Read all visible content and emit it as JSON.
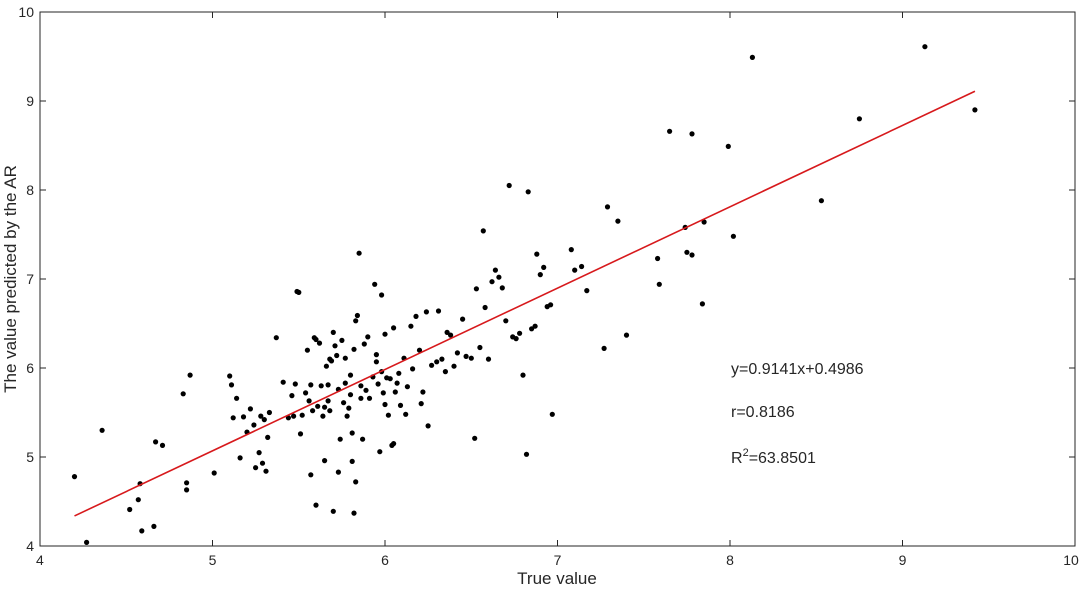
{
  "chart_data": {
    "type": "scatter",
    "title": "",
    "xlabel": "True value",
    "ylabel": "The value predicted by the AR",
    "xlim": [
      4,
      10
    ],
    "ylim": [
      4,
      10
    ],
    "xticks": [
      "4",
      "5",
      "6",
      "7",
      "8",
      "9",
      "10"
    ],
    "yticks": [
      "4",
      "5",
      "6",
      "7",
      "8",
      "9",
      "10"
    ],
    "grid": false,
    "legend": "none",
    "colors": {
      "points": "#000000",
      "fit_line": "#d7191c",
      "axes": "#262626"
    },
    "fit_line": {
      "slope": 0.9141,
      "intercept": 0.4986,
      "x_range": [
        4.2,
        9.42
      ]
    },
    "annotations": {
      "equation": "y=0.9141x+0.4986",
      "r": "r=0.8186",
      "r2_prefix": "R",
      "r2_sup": "2",
      "r2_value": "=63.8501"
    },
    "points": [
      [
        4.2,
        4.78
      ],
      [
        4.27,
        4.04
      ],
      [
        4.36,
        5.3
      ],
      [
        4.52,
        4.41
      ],
      [
        4.57,
        4.52
      ],
      [
        4.58,
        4.7
      ],
      [
        4.59,
        4.17
      ],
      [
        4.66,
        4.22
      ],
      [
        4.67,
        5.17
      ],
      [
        4.71,
        5.13
      ],
      [
        4.83,
        5.71
      ],
      [
        4.85,
        4.71
      ],
      [
        4.85,
        4.63
      ],
      [
        4.87,
        5.92
      ],
      [
        5.01,
        4.82
      ],
      [
        5.1,
        5.91
      ],
      [
        5.11,
        5.81
      ],
      [
        5.12,
        5.44
      ],
      [
        5.14,
        5.66
      ],
      [
        5.16,
        4.99
      ],
      [
        5.18,
        5.45
      ],
      [
        5.2,
        5.28
      ],
      [
        5.22,
        5.54
      ],
      [
        5.24,
        5.36
      ],
      [
        5.25,
        4.88
      ],
      [
        5.27,
        5.05
      ],
      [
        5.28,
        5.46
      ],
      [
        5.29,
        4.93
      ],
      [
        5.3,
        5.42
      ],
      [
        5.31,
        4.84
      ],
      [
        5.32,
        5.22
      ],
      [
        5.33,
        5.5
      ],
      [
        5.37,
        6.34
      ],
      [
        5.41,
        5.84
      ],
      [
        5.44,
        5.44
      ],
      [
        5.46,
        5.69
      ],
      [
        5.47,
        5.46
      ],
      [
        5.48,
        5.82
      ],
      [
        5.49,
        6.86
      ],
      [
        5.5,
        6.85
      ],
      [
        5.51,
        5.26
      ],
      [
        5.52,
        5.47
      ],
      [
        5.54,
        5.72
      ],
      [
        5.55,
        6.2
      ],
      [
        5.56,
        5.63
      ],
      [
        5.57,
        5.81
      ],
      [
        5.57,
        4.8
      ],
      [
        5.58,
        5.52
      ],
      [
        5.59,
        6.34
      ],
      [
        5.6,
        4.46
      ],
      [
        5.6,
        6.32
      ],
      [
        5.61,
        5.57
      ],
      [
        5.62,
        6.28
      ],
      [
        5.63,
        5.8
      ],
      [
        5.64,
        5.46
      ],
      [
        5.65,
        4.96
      ],
      [
        5.65,
        5.56
      ],
      [
        5.66,
        6.02
      ],
      [
        5.67,
        5.81
      ],
      [
        5.67,
        5.63
      ],
      [
        5.68,
        5.52
      ],
      [
        5.68,
        6.1
      ],
      [
        5.69,
        6.08
      ],
      [
        5.7,
        4.39
      ],
      [
        5.7,
        6.4
      ],
      [
        5.71,
        6.25
      ],
      [
        5.72,
        6.14
      ],
      [
        5.73,
        4.83
      ],
      [
        5.73,
        5.76
      ],
      [
        5.74,
        5.2
      ],
      [
        5.75,
        6.31
      ],
      [
        5.76,
        5.61
      ],
      [
        5.77,
        5.83
      ],
      [
        5.77,
        6.11
      ],
      [
        5.78,
        5.46
      ],
      [
        5.79,
        5.55
      ],
      [
        5.8,
        5.92
      ],
      [
        5.8,
        5.7
      ],
      [
        5.81,
        4.95
      ],
      [
        5.81,
        5.27
      ],
      [
        5.82,
        4.37
      ],
      [
        5.82,
        6.21
      ],
      [
        5.83,
        4.72
      ],
      [
        5.83,
        6.53
      ],
      [
        5.84,
        6.59
      ],
      [
        5.85,
        7.29
      ],
      [
        5.86,
        5.66
      ],
      [
        5.86,
        5.8
      ],
      [
        5.87,
        5.2
      ],
      [
        5.88,
        6.27
      ],
      [
        5.89,
        5.75
      ],
      [
        5.9,
        6.35
      ],
      [
        5.91,
        5.66
      ],
      [
        5.93,
        5.9
      ],
      [
        5.94,
        6.94
      ],
      [
        5.95,
        6.15
      ],
      [
        5.95,
        6.07
      ],
      [
        5.96,
        5.82
      ],
      [
        5.97,
        5.06
      ],
      [
        5.98,
        5.96
      ],
      [
        5.98,
        6.82
      ],
      [
        5.99,
        5.72
      ],
      [
        6.0,
        5.59
      ],
      [
        6.0,
        6.38
      ],
      [
        6.01,
        5.89
      ],
      [
        6.02,
        5.47
      ],
      [
        6.03,
        5.88
      ],
      [
        6.04,
        5.13
      ],
      [
        6.05,
        6.45
      ],
      [
        6.05,
        5.15
      ],
      [
        6.06,
        5.73
      ],
      [
        6.07,
        5.83
      ],
      [
        6.08,
        5.94
      ],
      [
        6.09,
        5.58
      ],
      [
        6.11,
        6.11
      ],
      [
        6.12,
        5.48
      ],
      [
        6.13,
        5.79
      ],
      [
        6.15,
        6.47
      ],
      [
        6.16,
        5.99
      ],
      [
        6.18,
        6.58
      ],
      [
        6.2,
        6.2
      ],
      [
        6.21,
        5.6
      ],
      [
        6.22,
        5.73
      ],
      [
        6.24,
        6.63
      ],
      [
        6.25,
        5.35
      ],
      [
        6.27,
        6.03
      ],
      [
        6.3,
        6.07
      ],
      [
        6.31,
        6.64
      ],
      [
        6.33,
        6.1
      ],
      [
        6.35,
        5.96
      ],
      [
        6.36,
        6.4
      ],
      [
        6.38,
        6.37
      ],
      [
        6.4,
        6.02
      ],
      [
        6.42,
        6.17
      ],
      [
        6.45,
        6.55
      ],
      [
        6.47,
        6.13
      ],
      [
        6.5,
        6.11
      ],
      [
        6.52,
        5.21
      ],
      [
        6.53,
        6.89
      ],
      [
        6.55,
        6.23
      ],
      [
        6.57,
        7.54
      ],
      [
        6.58,
        6.68
      ],
      [
        6.6,
        6.1
      ],
      [
        6.62,
        6.97
      ],
      [
        6.64,
        7.1
      ],
      [
        6.66,
        7.02
      ],
      [
        6.68,
        6.9
      ],
      [
        6.7,
        6.53
      ],
      [
        6.72,
        8.05
      ],
      [
        6.74,
        6.35
      ],
      [
        6.76,
        6.33
      ],
      [
        6.78,
        6.39
      ],
      [
        6.8,
        5.92
      ],
      [
        6.82,
        5.03
      ],
      [
        6.83,
        7.98
      ],
      [
        6.85,
        6.44
      ],
      [
        6.87,
        6.47
      ],
      [
        6.88,
        7.28
      ],
      [
        6.9,
        7.05
      ],
      [
        6.92,
        7.13
      ],
      [
        6.94,
        6.69
      ],
      [
        6.96,
        6.71
      ],
      [
        6.97,
        5.48
      ],
      [
        7.08,
        7.33
      ],
      [
        7.1,
        7.1
      ],
      [
        7.14,
        7.14
      ],
      [
        7.17,
        6.87
      ],
      [
        7.27,
        6.22
      ],
      [
        7.29,
        7.81
      ],
      [
        7.35,
        7.65
      ],
      [
        7.4,
        6.37
      ],
      [
        7.58,
        7.23
      ],
      [
        7.59,
        6.94
      ],
      [
        7.65,
        8.66
      ],
      [
        7.74,
        7.58
      ],
      [
        7.75,
        7.3
      ],
      [
        7.78,
        7.27
      ],
      [
        7.78,
        8.63
      ],
      [
        7.84,
        6.72
      ],
      [
        7.85,
        7.64
      ],
      [
        7.99,
        8.49
      ],
      [
        8.02,
        7.48
      ],
      [
        8.13,
        9.49
      ],
      [
        8.53,
        7.88
      ],
      [
        8.75,
        8.8
      ],
      [
        9.13,
        9.61
      ],
      [
        9.42,
        8.9
      ]
    ]
  }
}
